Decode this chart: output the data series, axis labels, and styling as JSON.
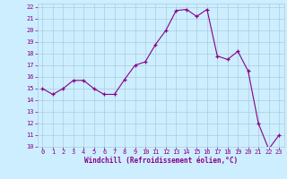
{
  "x": [
    0,
    1,
    2,
    3,
    4,
    5,
    6,
    7,
    8,
    9,
    10,
    11,
    12,
    13,
    14,
    15,
    16,
    17,
    18,
    19,
    20,
    21,
    22,
    23
  ],
  "y": [
    15.0,
    14.5,
    15.0,
    15.7,
    15.7,
    15.0,
    14.5,
    14.5,
    15.8,
    17.0,
    17.3,
    18.8,
    20.0,
    21.7,
    21.8,
    21.2,
    21.8,
    17.8,
    17.5,
    18.2,
    16.5,
    12.0,
    9.8,
    11.0
  ],
  "xlabel": "Windchill (Refroidissement éolien,°C)",
  "ylim": [
    10,
    22
  ],
  "xlim": [
    -0.5,
    23.5
  ],
  "yticks": [
    10,
    11,
    12,
    13,
    14,
    15,
    16,
    17,
    18,
    19,
    20,
    21,
    22
  ],
  "xticks": [
    0,
    1,
    2,
    3,
    4,
    5,
    6,
    7,
    8,
    9,
    10,
    11,
    12,
    13,
    14,
    15,
    16,
    17,
    18,
    19,
    20,
    21,
    22,
    23
  ],
  "line_color": "#880088",
  "marker_color": "#880088",
  "bg_color": "#cceeff",
  "grid_color": "#aaccdd",
  "tick_color": "#880088",
  "xlabel_color": "#880088"
}
